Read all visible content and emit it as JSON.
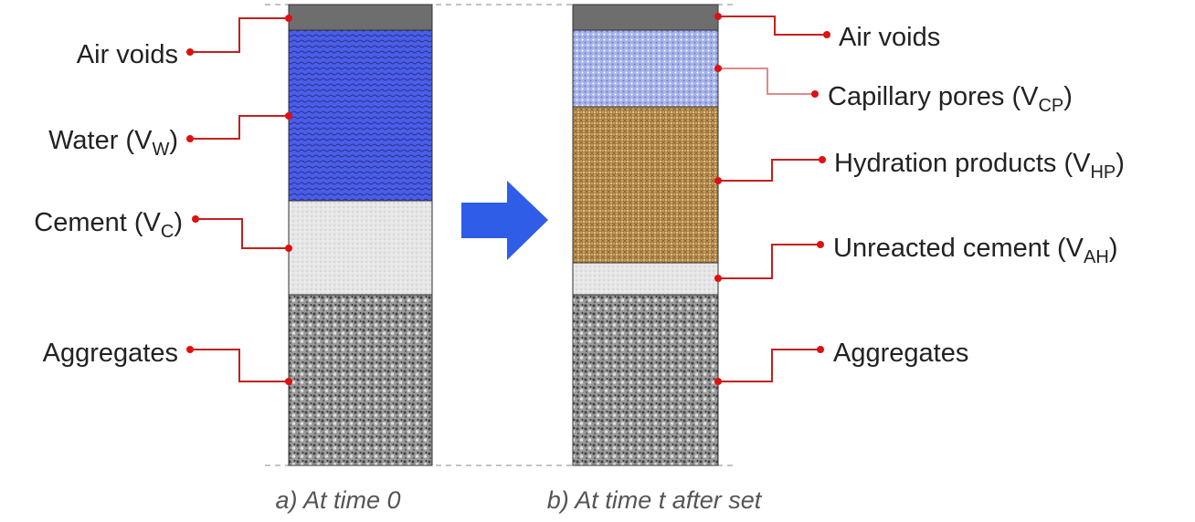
{
  "left": {
    "caption": "a) At time 0",
    "labels": [
      {
        "text": "Air voids"
      },
      {
        "text": "Water (V",
        "sub": "W",
        "tail": ")"
      },
      {
        "text": "Cement (V",
        "sub": "C",
        "tail": ")"
      },
      {
        "text": "Aggregates"
      }
    ]
  },
  "right": {
    "caption": "b) At time t after set",
    "labels": [
      {
        "text": "Air voids"
      },
      {
        "text": "Capillary pores (V",
        "sub": "CP",
        "tail": ")"
      },
      {
        "text": "Hydration products (V",
        "sub": "HP",
        "tail": ")"
      },
      {
        "text": "Unreacted cement (V",
        "sub": "AH",
        "tail": ")"
      },
      {
        "text": "Aggregates"
      }
    ]
  }
}
